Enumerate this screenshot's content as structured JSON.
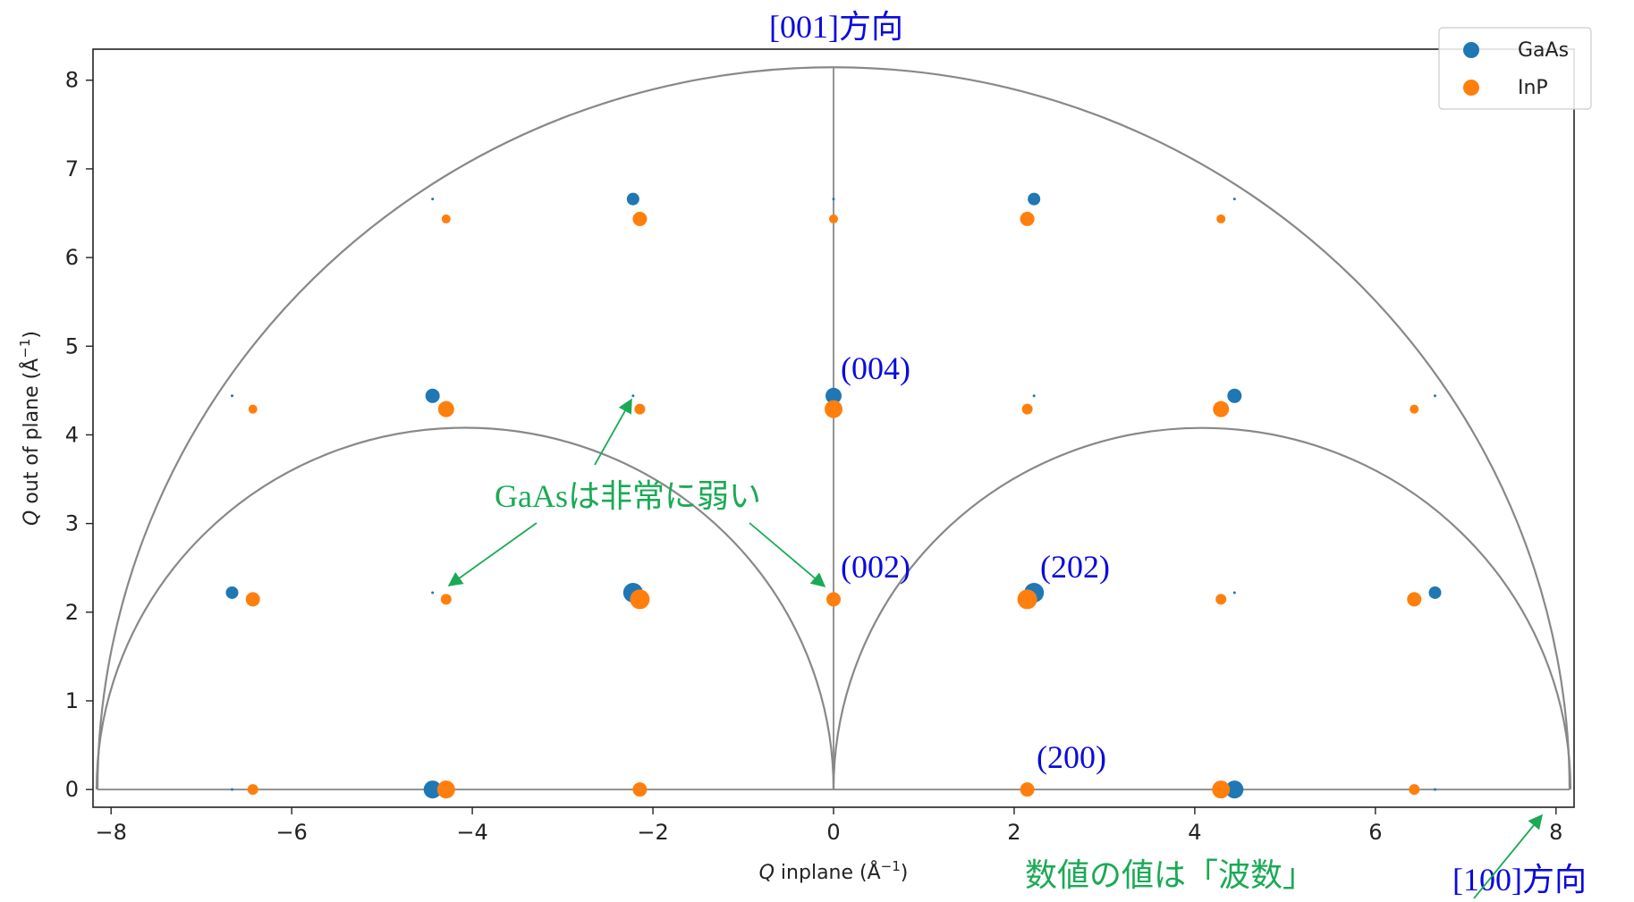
{
  "chart_data": {
    "type": "scatter",
    "xlabel": "Q inplane (Å⁻¹)",
    "xlabel_italic": "Q",
    "xlabel_rest": " inplane (Å",
    "ylabel": "Q out of plane (Å⁻¹)",
    "ylabel_italic": "Q",
    "ylabel_rest": " out of plane (Å",
    "unit_exp": "−1",
    "xlim": [
      -8.2,
      8.2
    ],
    "ylim": [
      -0.2,
      8.35
    ],
    "xticks": [
      -8,
      -6,
      -4,
      -2,
      0,
      2,
      4,
      6,
      8
    ],
    "xtick_labels": [
      "−8",
      "−6",
      "−4",
      "−2",
      "0",
      "2",
      "4",
      "6",
      "8"
    ],
    "yticks": [
      0,
      1,
      2,
      3,
      4,
      5,
      6,
      7,
      8
    ],
    "ytick_labels": [
      "0",
      "1",
      "2",
      "3",
      "4",
      "5",
      "6",
      "7",
      "8"
    ],
    "grid": false,
    "legend_position": "top-right",
    "series": [
      {
        "name": "GaAs",
        "color": "#1f77b4",
        "points": [
          {
            "x": -4.44,
            "y": 0,
            "s": 10
          },
          {
            "x": 4.44,
            "y": 0,
            "s": 10
          },
          {
            "x": -6.66,
            "y": 0,
            "s": 1.5
          },
          {
            "x": 6.66,
            "y": 0,
            "s": 1.5
          },
          {
            "x": -2.22,
            "y": 2.22,
            "s": 11
          },
          {
            "x": 2.22,
            "y": 2.22,
            "s": 11
          },
          {
            "x": -6.66,
            "y": 2.22,
            "s": 7
          },
          {
            "x": 6.66,
            "y": 2.22,
            "s": 7
          },
          {
            "x": -4.44,
            "y": 2.22,
            "s": 1.5
          },
          {
            "x": 4.44,
            "y": 2.22,
            "s": 1.5
          },
          {
            "x": 0,
            "y": 4.44,
            "s": 9
          },
          {
            "x": -4.44,
            "y": 4.44,
            "s": 8
          },
          {
            "x": 4.44,
            "y": 4.44,
            "s": 8
          },
          {
            "x": -2.22,
            "y": 4.44,
            "s": 1.5
          },
          {
            "x": 2.22,
            "y": 4.44,
            "s": 1.5
          },
          {
            "x": -6.66,
            "y": 4.44,
            "s": 1.5
          },
          {
            "x": 6.66,
            "y": 4.44,
            "s": 1.5
          },
          {
            "x": -2.22,
            "y": 6.66,
            "s": 7
          },
          {
            "x": 2.22,
            "y": 6.66,
            "s": 7
          },
          {
            "x": -4.44,
            "y": 6.66,
            "s": 1.5
          },
          {
            "x": 4.44,
            "y": 6.66,
            "s": 1.5
          },
          {
            "x": 0,
            "y": 6.66,
            "s": 1.5
          }
        ]
      },
      {
        "name": "InP",
        "color": "#ff7f0e",
        "points": [
          {
            "x": -4.29,
            "y": 0,
            "s": 10
          },
          {
            "x": 4.29,
            "y": 0,
            "s": 10
          },
          {
            "x": -2.145,
            "y": 0,
            "s": 8
          },
          {
            "x": 2.145,
            "y": 0,
            "s": 8
          },
          {
            "x": -6.43,
            "y": 0,
            "s": 6
          },
          {
            "x": 6.43,
            "y": 0,
            "s": 6
          },
          {
            "x": -2.145,
            "y": 2.145,
            "s": 11
          },
          {
            "x": 2.145,
            "y": 2.145,
            "s": 11
          },
          {
            "x": 0,
            "y": 2.145,
            "s": 8
          },
          {
            "x": -6.43,
            "y": 2.145,
            "s": 8
          },
          {
            "x": 6.43,
            "y": 2.145,
            "s": 8
          },
          {
            "x": -4.29,
            "y": 2.145,
            "s": 6
          },
          {
            "x": 4.29,
            "y": 2.145,
            "s": 6
          },
          {
            "x": 0,
            "y": 4.29,
            "s": 10
          },
          {
            "x": -4.29,
            "y": 4.29,
            "s": 9
          },
          {
            "x": 4.29,
            "y": 4.29,
            "s": 9
          },
          {
            "x": -2.145,
            "y": 4.29,
            "s": 6
          },
          {
            "x": 2.145,
            "y": 4.29,
            "s": 6
          },
          {
            "x": -6.43,
            "y": 4.29,
            "s": 5
          },
          {
            "x": 6.43,
            "y": 4.29,
            "s": 5
          },
          {
            "x": -2.145,
            "y": 6.435,
            "s": 8
          },
          {
            "x": 2.145,
            "y": 6.435,
            "s": 8
          },
          {
            "x": -4.29,
            "y": 6.435,
            "s": 5
          },
          {
            "x": 4.29,
            "y": 6.435,
            "s": 5
          },
          {
            "x": 0,
            "y": 6.435,
            "s": 5
          }
        ]
      }
    ],
    "arcs": [
      {
        "cx": 0,
        "cy": 0,
        "r": 8.15
      },
      {
        "cx": -4.08,
        "cy": 0,
        "r": 4.08
      },
      {
        "cx": 4.08,
        "cy": 0,
        "r": 4.08
      }
    ],
    "lines": [
      {
        "x1": -8.15,
        "y1": 0,
        "x2": 8.15,
        "y2": 0
      },
      {
        "x1": 0,
        "y1": 0,
        "x2": 0,
        "y2": 8.15
      }
    ],
    "annotations": {
      "direction_001": "[001]方向",
      "direction_100": "[100]方向",
      "label_004": "(004)",
      "label_002": "(002)",
      "label_202": "(202)",
      "label_200": "(200)",
      "gaas_weak": "GaAsは非常に弱い",
      "wavenumber_note": "数値の値は「波数」"
    }
  }
}
